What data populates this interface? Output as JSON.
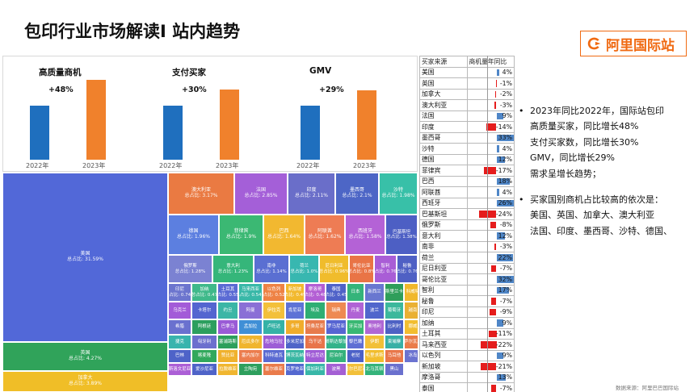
{
  "header": {
    "title": "包印行业市场解读I 站内趋势"
  },
  "logo": {
    "text": "阿里国际站",
    "icon": "alibaba-logo-icon"
  },
  "colors": {
    "bar_2022": "#1f6fbe",
    "bar_2023": "#f0812c",
    "positive": "#4f86c7",
    "negative": "#e51c1c",
    "brand": "#f06a12"
  },
  "chart_data": [
    {
      "type": "bar",
      "title": "高质量商机",
      "categories": [
        "2022年",
        "2023年"
      ],
      "values": [
        1.0,
        1.48
      ],
      "annotation": "+48%"
    },
    {
      "type": "bar",
      "title": "支付买家",
      "categories": [
        "2022年",
        "2023年"
      ],
      "values": [
        1.0,
        1.3
      ],
      "annotation": "+30%"
    },
    {
      "type": "bar",
      "title": "GMV",
      "categories": [
        "2022年",
        "2023年"
      ],
      "values": [
        1.0,
        1.29
      ],
      "annotation": "+29%"
    },
    {
      "type": "heatmap",
      "label_prefix": "总占比:",
      "items": [
        {
          "name": "美国",
          "share": "31.59%",
          "color": "#5268d8"
        },
        {
          "name": "英国",
          "share": "4.27%",
          "color": "#30a35a"
        },
        {
          "name": "加拿大",
          "share": "3.89%",
          "color": "#f0be27"
        },
        {
          "name": "澳大利亚",
          "share": "3.17%",
          "color": "#ea7a42"
        },
        {
          "name": "法国",
          "share": "2.85%",
          "color": "#a45fd8"
        },
        {
          "name": "印度",
          "share": "2.11%",
          "color": "#6a6ec9"
        },
        {
          "name": "墨西哥",
          "share": "2.1%",
          "color": "#4d66c6"
        },
        {
          "name": "沙特",
          "share": "1.98%",
          "color": "#38c0a8"
        },
        {
          "name": "德国",
          "share": "1.96%",
          "color": "#5c7fe0"
        },
        {
          "name": "菲律宾",
          "share": "1.9%",
          "color": "#3bb873"
        },
        {
          "name": "巴西",
          "share": "1.64%",
          "color": "#f2b830"
        },
        {
          "name": "阿联酋",
          "share": "1.62%",
          "color": "#ee7c54"
        },
        {
          "name": "西班牙",
          "share": "1.58%",
          "color": "#b462d6"
        },
        {
          "name": "巴基斯坦",
          "share": "1.38%",
          "color": "#4d5fc4"
        },
        {
          "name": "俄罗斯",
          "share": "1.28%",
          "color": "#7b82d2"
        },
        {
          "name": "意大利",
          "share": "1.23%",
          "color": "#35b67a"
        },
        {
          "name": "南非",
          "share": "1.14%",
          "color": "#5a6fd2"
        },
        {
          "name": "荷兰",
          "share": "1.0%",
          "color": "#38b7b0"
        },
        {
          "name": "尼日利亚",
          "share": "0.96%",
          "color": "#f0bc2c"
        },
        {
          "name": "哥伦比亚",
          "share": "0.8%",
          "color": "#e97446"
        },
        {
          "name": "智利",
          "share": "0.76%",
          "color": "#a95dd6"
        },
        {
          "name": "秘鲁",
          "share": "0.76%",
          "color": "#4f60c4"
        },
        {
          "name": "印尼",
          "share": "0.74%",
          "color": "#6c75ce"
        },
        {
          "name": "加纳",
          "share": "0.47",
          "color": "#3fb98a"
        },
        {
          "name": "土耳其",
          "share": "0.55%",
          "color": "#5b6bd4"
        },
        {
          "name": "马来西亚",
          "share": "0.54%",
          "color": "#39b8a8"
        },
        {
          "name": "以色列",
          "share": "0.52%",
          "color": "#ee8244"
        },
        {
          "name": "新加坡",
          "share": "0.49%",
          "color": "#f2b92e"
        },
        {
          "name": "摩洛哥",
          "share": "0.48%",
          "color": "#b35ed4"
        },
        {
          "name": "泰国",
          "share": "0.45%",
          "color": "#4f62c8"
        },
        {
          "name": "日本",
          "share": "",
          "color": "#35b47a"
        },
        {
          "name": "新西兰",
          "share": "",
          "color": "#6977d0"
        },
        {
          "name": "斯里兰卡",
          "share": "",
          "color": "#2f9e5a"
        },
        {
          "name": "科威特",
          "share": "",
          "color": "#f0b82c"
        },
        {
          "name": "爱尔兰",
          "share": "",
          "color": "#ea7748"
        },
        {
          "name": "乌克兰",
          "share": "",
          "color": "#a35bd8"
        },
        {
          "name": "卡塔尔",
          "share": "",
          "color": "#5465d0"
        },
        {
          "name": "约旦",
          "share": "",
          "color": "#3bb6a6"
        },
        {
          "name": "阿曼",
          "share": "",
          "color": "#8a6fd6"
        },
        {
          "name": "伊拉克",
          "share": "",
          "color": "#f3c03a"
        },
        {
          "name": "肯尼亚",
          "share": "",
          "color": "#5e72d6"
        },
        {
          "name": "埃及",
          "share": "",
          "color": "#2fae73"
        },
        {
          "name": "瑞典",
          "share": "",
          "color": "#ee8a52"
        },
        {
          "name": "丹麦",
          "share": "",
          "color": "#b063d5"
        },
        {
          "name": "波兰",
          "share": "",
          "color": "#5066cc"
        },
        {
          "name": "葡萄牙",
          "share": "",
          "color": "#3cb89c"
        },
        {
          "name": "越南",
          "share": "",
          "color": "#eab033"
        },
        {
          "name": "瑞士",
          "share": "",
          "color": "#e96e48"
        },
        {
          "name": "希腊",
          "share": "",
          "color": "#6a71cf"
        },
        {
          "name": "阿根廷",
          "share": "",
          "color": "#2c9f5e"
        },
        {
          "name": "巴拿马",
          "share": "",
          "color": "#9a5bd6"
        },
        {
          "name": "孟加拉",
          "share": "",
          "color": "#3f8fd6"
        },
        {
          "name": "卢旺达",
          "share": "",
          "color": "#35b2a6"
        },
        {
          "name": "多哥",
          "share": "",
          "color": "#f0ad2c"
        },
        {
          "name": "坦桑尼亚",
          "share": "",
          "color": "#e77b4c"
        },
        {
          "name": "罗马尼亚",
          "share": "",
          "color": "#5765d2"
        },
        {
          "name": "牙买加",
          "share": "",
          "color": "#39b873"
        },
        {
          "name": "奥地利",
          "share": "",
          "color": "#b067d4"
        },
        {
          "name": "比利时",
          "share": "",
          "color": "#4e62c4"
        },
        {
          "name": "挪威",
          "share": "",
          "color": "#f2be30"
        },
        {
          "name": "芬兰",
          "share": "",
          "color": "#ef7f48"
        },
        {
          "name": "捷克",
          "share": "",
          "color": "#39b4ad"
        },
        {
          "name": "匈牙利",
          "share": "",
          "color": "#6c6fce"
        },
        {
          "name": "塞浦路斯",
          "share": "",
          "color": "#2d9f5c"
        },
        {
          "name": "厄瓜多尔",
          "share": "",
          "color": "#f0b52e"
        },
        {
          "name": "危地马拉",
          "share": "",
          "color": "#9d5dd6"
        },
        {
          "name": "多米尼加",
          "share": "",
          "color": "#4f64c8"
        },
        {
          "name": "乌干达",
          "share": "",
          "color": "#e8744a"
        },
        {
          "name": "哥斯达黎加",
          "share": "",
          "color": "#34b38a"
        },
        {
          "name": "黎巴嫩",
          "share": "",
          "color": "#5f6fd4"
        },
        {
          "name": "伊朗",
          "share": "",
          "color": "#f2c037"
        },
        {
          "name": "柬埔寨",
          "share": "",
          "color": "#38b0a6"
        },
        {
          "name": "萨尔瓦多",
          "share": "",
          "color": "#ea7c4a"
        },
        {
          "name": "洪都拉斯",
          "share": "",
          "color": "#a962d6"
        },
        {
          "name": "巴林",
          "share": "",
          "color": "#4e63c8"
        },
        {
          "name": "喀麦隆",
          "share": "",
          "color": "#31a85c"
        },
        {
          "name": "赞比亚",
          "share": "",
          "color": "#f0b22e"
        },
        {
          "name": "塞内加尔",
          "share": "",
          "color": "#ec7d4e"
        },
        {
          "name": "科特迪瓦",
          "share": "",
          "color": "#5a6ad2"
        },
        {
          "name": "博茨瓦纳",
          "share": "",
          "color": "#38b6a2"
        },
        {
          "name": "特立尼达",
          "share": "",
          "color": "#a05cd6"
        },
        {
          "name": "尼泊尔",
          "share": "",
          "color": "#35b27c"
        },
        {
          "name": "老挝",
          "share": "",
          "color": "#4c61c8"
        },
        {
          "name": "毛里求斯",
          "share": "",
          "color": "#f2be2e"
        },
        {
          "name": "马耳他",
          "share": "",
          "color": "#e9774a"
        },
        {
          "name": "冰岛",
          "share": "",
          "color": "#6b73d0"
        },
        {
          "name": "斯洛伐克",
          "share": "",
          "color": "#37b59c"
        },
        {
          "name": "斯洛文尼亚",
          "share": "",
          "color": "#ac5fd6"
        },
        {
          "name": "爱沙尼亚",
          "share": "",
          "color": "#4f63c8"
        },
        {
          "name": "拉脱维亚",
          "share": "",
          "color": "#f0b630"
        },
        {
          "name": "立陶宛",
          "share": "",
          "color": "#2e9f5d"
        },
        {
          "name": "塞尔维亚",
          "share": "",
          "color": "#ea7b4b"
        },
        {
          "name": "克罗地亚",
          "share": "",
          "color": "#5468d0"
        },
        {
          "name": "保加利亚",
          "share": "",
          "color": "#38b7a8"
        },
        {
          "name": "波黑",
          "share": "",
          "color": "#a45fd4"
        },
        {
          "name": "阿尔巴尼亚",
          "share": "",
          "color": "#f2c03a"
        },
        {
          "name": "北马其顿",
          "share": "",
          "color": "#34b37a"
        },
        {
          "name": "黑山",
          "share": "",
          "color": "#6a70ce"
        }
      ]
    },
    {
      "type": "table",
      "headers": [
        "买家来源",
        "商机量年同比"
      ],
      "rows": [
        {
          "country": "美国",
          "value": 4,
          "label": "4%"
        },
        {
          "country": "英国",
          "value": -1,
          "label": "-1%"
        },
        {
          "country": "加拿大",
          "value": -2,
          "label": "-2%"
        },
        {
          "country": "澳大利亚",
          "value": -3,
          "label": "-3%"
        },
        {
          "country": "法国",
          "value": 9,
          "label": "9%"
        },
        {
          "country": "印度",
          "value": -14,
          "label": "-14%"
        },
        {
          "country": "墨西哥",
          "value": 33,
          "label": "33%"
        },
        {
          "country": "沙特",
          "value": 4,
          "label": "4%"
        },
        {
          "country": "德国",
          "value": 12,
          "label": "12%"
        },
        {
          "country": "菲律宾",
          "value": -17,
          "label": "-17%"
        },
        {
          "country": "巴西",
          "value": 18,
          "label": "18%"
        },
        {
          "country": "阿联酋",
          "value": 4,
          "label": "4%"
        },
        {
          "country": "西班牙",
          "value": 26,
          "label": "26%"
        },
        {
          "country": "巴基斯坦",
          "value": -24,
          "label": "-24%"
        },
        {
          "country": "俄罗斯",
          "value": -8,
          "label": "-8%"
        },
        {
          "country": "意大利",
          "value": 12,
          "label": "12%"
        },
        {
          "country": "南非",
          "value": -3,
          "label": "-3%"
        },
        {
          "country": "荷兰",
          "value": 22,
          "label": "22%"
        },
        {
          "country": "尼日利亚",
          "value": -7,
          "label": "-7%"
        },
        {
          "country": "哥伦比亚",
          "value": 32,
          "label": "32%"
        },
        {
          "country": "智利",
          "value": 17,
          "label": "17%"
        },
        {
          "country": "秘鲁",
          "value": -7,
          "label": "-7%"
        },
        {
          "country": "印尼",
          "value": -9,
          "label": "-9%"
        },
        {
          "country": "加纳",
          "value": 9,
          "label": "9%"
        },
        {
          "country": "土耳其",
          "value": -11,
          "label": "-11%"
        },
        {
          "country": "马来西亚",
          "value": -22,
          "label": "-22%"
        },
        {
          "country": "以色列",
          "value": 9,
          "label": "9%"
        },
        {
          "country": "新加坡",
          "value": -21,
          "label": "-21%"
        },
        {
          "country": "摩洛哥",
          "value": 13,
          "label": "13%"
        },
        {
          "country": "泰国",
          "value": -7,
          "label": "-7%"
        }
      ]
    }
  ],
  "notes": [
    {
      "lines": [
        "2023年同比2022年，国际站包印",
        "高质量买家，同比增长48%",
        "支付买家数，同比增长30%",
        "GMV，同比增长29%",
        "需求呈增长趋势；"
      ]
    },
    {
      "lines": [
        "买家国别商机占比较高的依次是：",
        "美国、英国、加拿大、澳大利亚",
        "法国、印度、墨西哥、沙特、德国、"
      ]
    }
  ],
  "footer": {
    "text": "数据来源：阿里巴巴国际站"
  }
}
